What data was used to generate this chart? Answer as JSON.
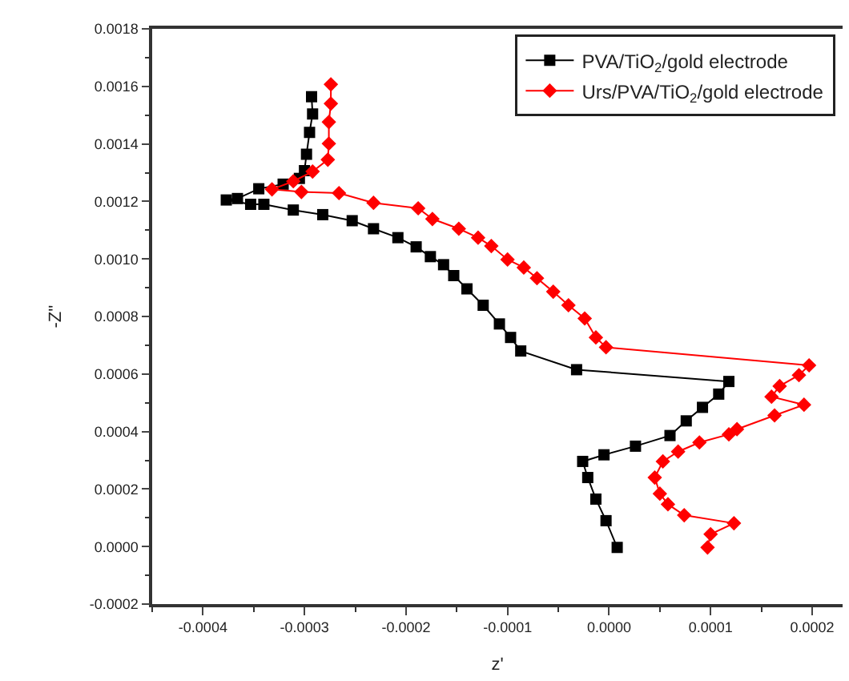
{
  "chart_data": {
    "type": "line",
    "xlabel": "z'",
    "ylabel": "-Z''",
    "grid": false,
    "legend": "top right",
    "xlim": [
      -0.00045,
      0.00023
    ],
    "xticks": [
      {
        "value": -0.0004,
        "label": "-0.0004"
      },
      {
        "value": -0.0003,
        "label": "-0.0003"
      },
      {
        "value": -0.0002,
        "label": "-0.0002"
      },
      {
        "value": -0.0001,
        "label": "-0.0001"
      },
      {
        "value": 0,
        "label": "0.0000"
      },
      {
        "value": 0.0001,
        "label": "0.0001"
      },
      {
        "value": 0.0002,
        "label": "0.0002"
      }
    ],
    "ylim": [
      -0.0002,
      0.0018
    ],
    "yticks": [
      {
        "value": -0.0002,
        "label": "-0.0002"
      },
      {
        "value": 0,
        "label": "0.0000"
      },
      {
        "value": 0.0002,
        "label": "0.0002"
      },
      {
        "value": 0.0004,
        "label": "0.0004"
      },
      {
        "value": 0.0006,
        "label": "0.0006"
      },
      {
        "value": 0.0008,
        "label": "0.0008"
      },
      {
        "value": 0.001,
        "label": "0.0010"
      },
      {
        "value": 0.0012,
        "label": "0.0012"
      },
      {
        "value": 0.0014,
        "label": "0.0014"
      },
      {
        "value": 0.0016,
        "label": "0.0016"
      },
      {
        "value": 0.0018,
        "label": "0.0018"
      }
    ],
    "series": [
      {
        "name": "PVA/TiO$_{2}$/gold electrode",
        "color": "#000000",
        "marker": "square",
        "line_style": "solid",
        "x": [
          -0.000293,
          -0.000292,
          -0.000295,
          -0.000298,
          -0.0003,
          -0.000305,
          -0.000321,
          -0.000345,
          -0.000366,
          -0.000377,
          -0.000353,
          -0.00034,
          -0.000311,
          -0.000282,
          -0.000253,
          -0.000232,
          -0.000208,
          -0.00019,
          -0.000176,
          -0.000163,
          -0.000153,
          -0.00014,
          -0.000124,
          -0.000108,
          -9.7e-05,
          -8.7e-05,
          -3.2e-05,
          0.000118,
          0.000108,
          9.2e-05,
          7.6e-05,
          6e-05,
          2.6e-05,
          -5e-06,
          -2.6e-05,
          -2.1e-05,
          -1.3e-05,
          -3e-06,
          8e-06
        ],
        "values": [
          0.001564,
          0.001504,
          0.00144,
          0.001364,
          0.001307,
          0.00128,
          0.00126,
          0.001244,
          0.00121,
          0.001205,
          0.00119,
          0.00119,
          0.00117,
          0.001154,
          0.001133,
          0.001105,
          0.001074,
          0.001042,
          0.001008,
          0.00098,
          0.000942,
          0.000896,
          0.000839,
          0.000774,
          0.000727,
          0.00068,
          0.000615,
          0.000574,
          0.00053,
          0.000484,
          0.000437,
          0.000386,
          0.000349,
          0.000319,
          0.000296,
          0.00024,
          0.000165,
          9e-05,
          -3e-06
        ]
      },
      {
        "name": "Urs/PVA/TiO$_{2}$/gold electrode",
        "color": "#ff0000",
        "marker": "diamond",
        "line_style": "solid",
        "x": [
          -0.000274,
          -0.000274,
          -0.000276,
          -0.000276,
          -0.000277,
          -0.000292,
          -0.000311,
          -0.000332,
          -0.000303,
          -0.000266,
          -0.000232,
          -0.000188,
          -0.000174,
          -0.000148,
          -0.000129,
          -0.000116,
          -0.0001,
          -8.4e-05,
          -7.1e-05,
          -5.5e-05,
          -4e-05,
          -2.4e-05,
          -1.3e-05,
          -3e-06,
          0.000197,
          0.000187,
          0.000168,
          0.00016,
          0.000192,
          0.000163,
          0.000126,
          0.000118,
          8.9e-05,
          6.8e-05,
          5.3e-05,
          4.5e-05,
          5e-05,
          5.8e-05,
          7.4e-05,
          0.000123,
          0.0001,
          9.7e-05
        ],
        "values": [
          0.001607,
          0.00154,
          0.001476,
          0.001401,
          0.001345,
          0.001304,
          0.00127,
          0.001242,
          0.001233,
          0.001229,
          0.001195,
          0.001176,
          0.001139,
          0.001105,
          0.001074,
          0.001045,
          0.000998,
          0.00097,
          0.000933,
          0.000886,
          0.000839,
          0.000793,
          0.000727,
          0.000693,
          0.00063,
          0.000596,
          0.000558,
          0.000521,
          0.000493,
          0.000456,
          0.000408,
          0.00039,
          0.000362,
          0.00033,
          0.000296,
          0.00024,
          0.000184,
          0.000147,
          0.000109,
          8.1e-05,
          4.3e-05,
          -3e-06
        ]
      }
    ]
  }
}
